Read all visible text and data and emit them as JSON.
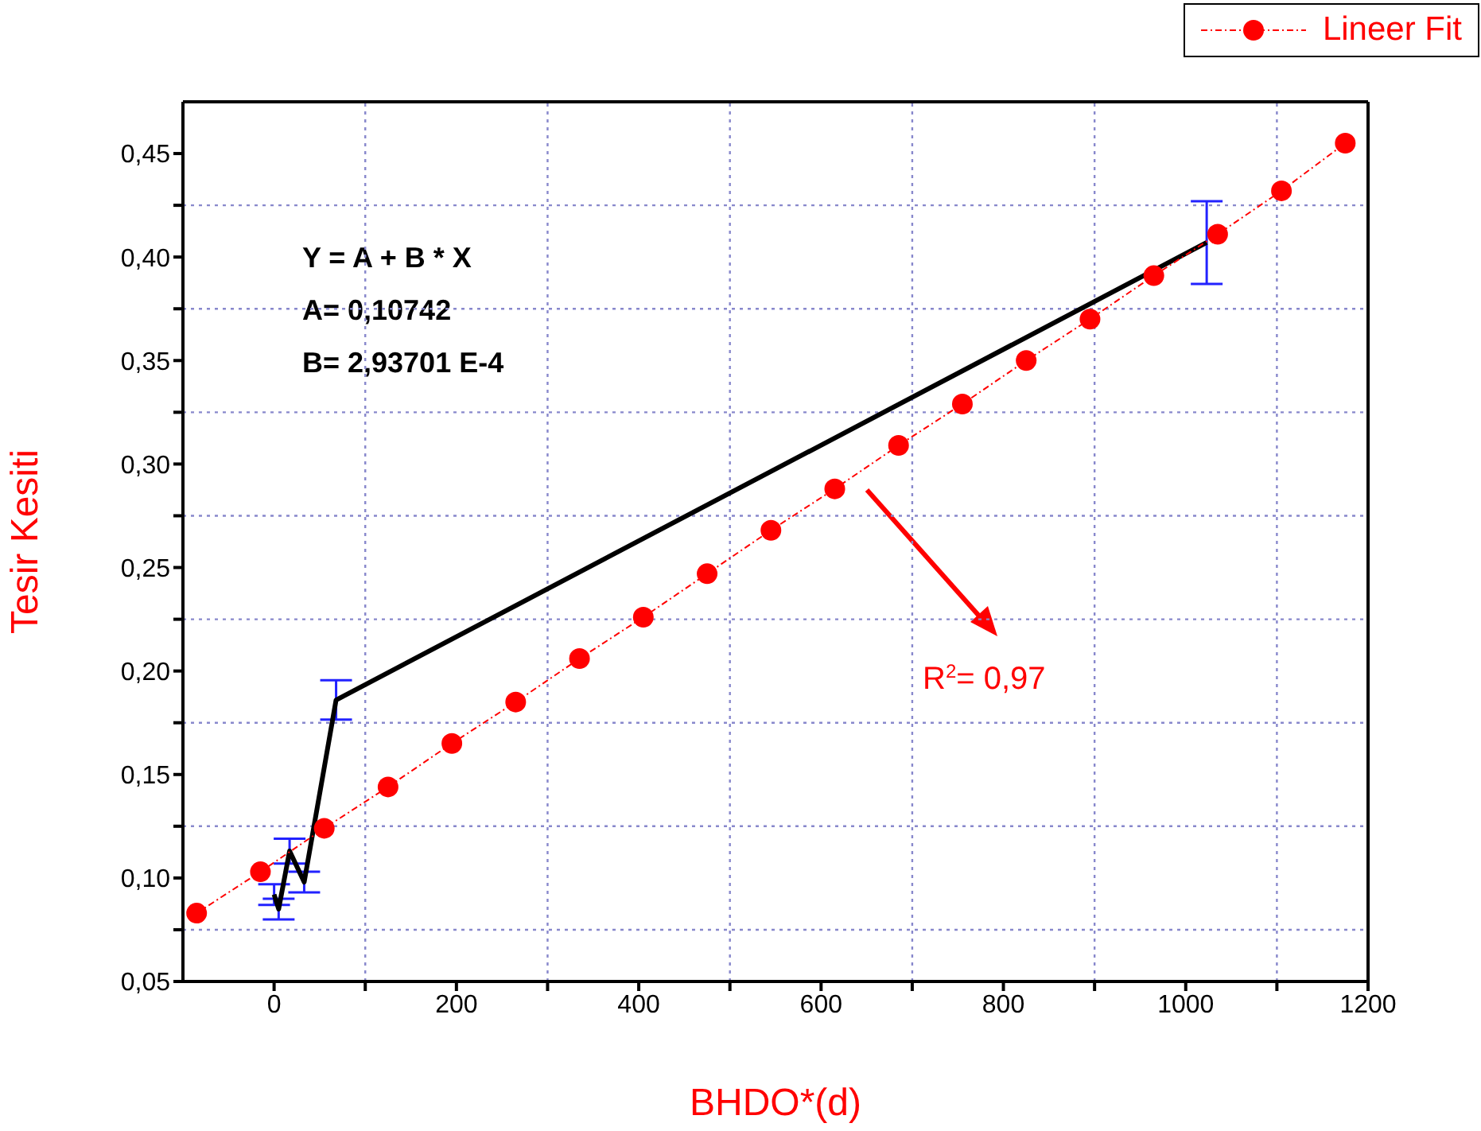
{
  "chart_data": {
    "type": "line",
    "xlabel": "BHDO*(d)",
    "ylabel": "Tesir Kesiti",
    "xlim": [
      -100,
      1200
    ],
    "ylim": [
      0.05,
      0.475
    ],
    "xticks": [
      {
        "value": 0,
        "label": "0"
      },
      {
        "value": 100,
        "label": null
      },
      {
        "value": 200,
        "label": "200"
      },
      {
        "value": 300,
        "label": null
      },
      {
        "value": 400,
        "label": "400"
      },
      {
        "value": 500,
        "label": null
      },
      {
        "value": 600,
        "label": "600"
      },
      {
        "value": 700,
        "label": null
      },
      {
        "value": 800,
        "label": "800"
      },
      {
        "value": 900,
        "label": null
      },
      {
        "value": 1000,
        "label": "1000"
      },
      {
        "value": 1100,
        "label": null
      },
      {
        "value": 1200,
        "label": "1200"
      }
    ],
    "yticks": [
      {
        "value": 0.05,
        "label": "0,05"
      },
      {
        "value": 0.075,
        "label": null
      },
      {
        "value": 0.1,
        "label": "0,10"
      },
      {
        "value": 0.125,
        "label": null
      },
      {
        "value": 0.15,
        "label": "0,15"
      },
      {
        "value": 0.175,
        "label": null
      },
      {
        "value": 0.2,
        "label": "0,20"
      },
      {
        "value": 0.225,
        "label": null
      },
      {
        "value": 0.25,
        "label": "0,25"
      },
      {
        "value": 0.275,
        "label": null
      },
      {
        "value": 0.3,
        "label": "0,30"
      },
      {
        "value": 0.325,
        "label": null
      },
      {
        "value": 0.35,
        "label": "0,35"
      },
      {
        "value": 0.375,
        "label": null
      },
      {
        "value": 0.4,
        "label": "0,40"
      },
      {
        "value": 0.425,
        "label": null
      },
      {
        "value": 0.45,
        "label": "0,45"
      }
    ],
    "grid": true,
    "legend": "top right",
    "annotations": [
      "Y = A + B * X",
      "A= 0,10742",
      "B= 2,93701 E-4",
      "R$^{2}$= 0,97"
    ],
    "series": [
      {
        "color": "#000000",
        "marker": "none",
        "line_style": "solid",
        "x": [
          0,
          5,
          17,
          33,
          68,
          1023
        ],
        "values": [
          0.092,
          0.085,
          0.113,
          0.098,
          0.186,
          0.407
        ],
        "errors": [
          0.005,
          0.005,
          0.006,
          0.005,
          0.0095,
          0.02
        ]
      },
      {
        "name": "Lineer Fit",
        "color": "#ff0000",
        "marker": "circle",
        "line_style": "dotted",
        "x": [
          -85,
          -15,
          55,
          125,
          195,
          265,
          335,
          405,
          475,
          545,
          615,
          685,
          755,
          825,
          895,
          965,
          1035,
          1105,
          1175
        ],
        "values": [
          0.083,
          0.103,
          0.124,
          0.144,
          0.165,
          0.185,
          0.206,
          0.226,
          0.247,
          0.268,
          0.288,
          0.309,
          0.329,
          0.35,
          0.37,
          0.391,
          0.411,
          0.432,
          0.455
        ]
      }
    ]
  }
}
